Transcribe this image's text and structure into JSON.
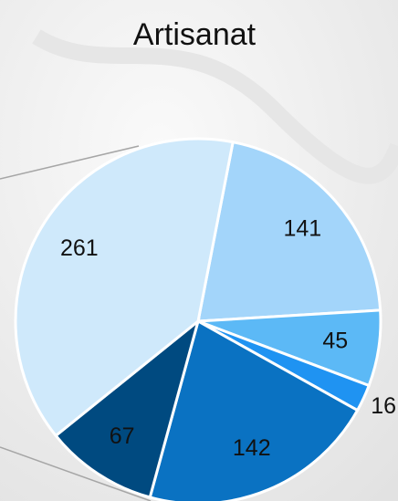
{
  "chart_data": {
    "type": "pie",
    "title": "Artisanat",
    "categories": [
      null,
      null,
      null,
      null,
      null,
      null
    ],
    "values": [
      141,
      45,
      16,
      142,
      67,
      261
    ],
    "colors": [
      "#a3d5fa",
      "#5cb9f6",
      "#1f93f2",
      "#0a72c2",
      "#004a80",
      "#cfe9fb"
    ],
    "start_angle": 11
  }
}
